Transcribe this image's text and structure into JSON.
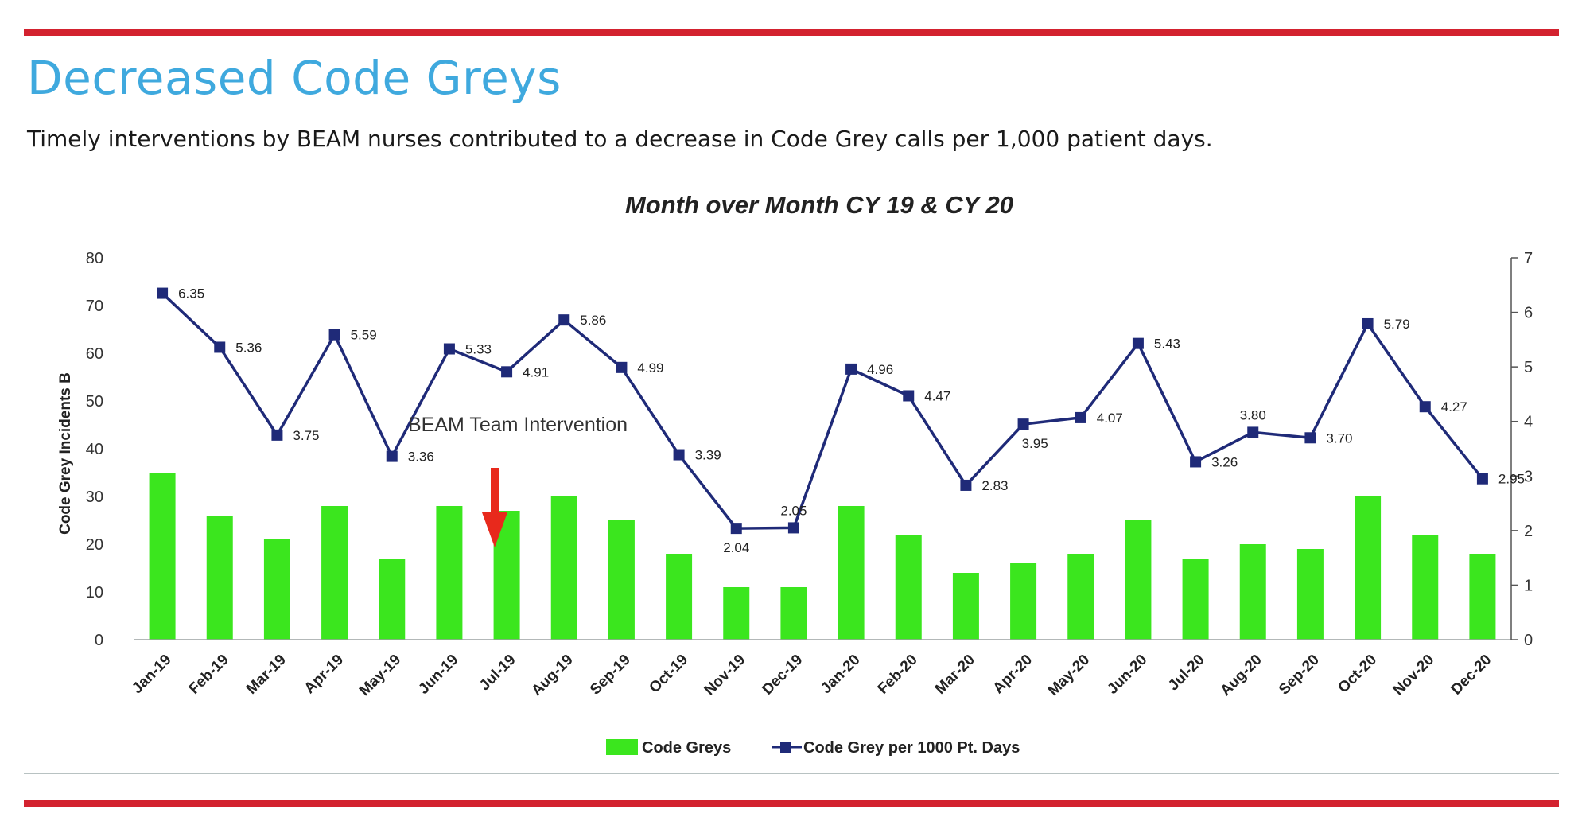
{
  "header": {
    "title": "Decreased Code Greys",
    "subtitle": "Timely interventions by BEAM nurses contributed to a decrease in Code Grey calls per 1,000 patient days."
  },
  "colors": {
    "accent_red": "#d3222f",
    "title_blue": "#3fa9de",
    "bar_green": "#3be61e",
    "line_navy": "#1f2a78",
    "arrow_red": "#e8291c"
  },
  "chart_data": {
    "type": "bar",
    "title": "Month over Month CY 19 & CY 20",
    "categories": [
      "Jan-19",
      "Feb-19",
      "Mar-19",
      "Apr-19",
      "May-19",
      "Jun-19",
      "Jul-19",
      "Aug-19",
      "Sep-19",
      "Oct-19",
      "Nov-19",
      "Dec-19",
      "Jan-20",
      "Feb-20",
      "Mar-20",
      "Apr-20",
      "May-20",
      "Jun-20",
      "Jul-20",
      "Aug-20",
      "Sep-20",
      "Oct-20",
      "Nov-20",
      "Dec-20"
    ],
    "ylabel": "Code Grey Incidents B",
    "ylim": [
      0,
      80
    ],
    "yticks": [
      "0",
      "10",
      "20",
      "30",
      "40",
      "50",
      "60",
      "70",
      "80"
    ],
    "y2lim": [
      0,
      7
    ],
    "y2ticks": [
      "0",
      "1",
      "2",
      "3",
      "4",
      "5",
      "6",
      "7"
    ],
    "grid": false,
    "legend_position": "bottom",
    "series": [
      {
        "name": "Code Greys",
        "type": "bar",
        "axis": "left",
        "values": [
          35,
          26,
          21,
          28,
          17,
          28,
          27,
          30,
          25,
          18,
          11,
          11,
          28,
          22,
          14,
          16,
          18,
          25,
          17,
          20,
          19,
          30,
          22,
          18
        ]
      },
      {
        "name": "Code Grey per 1000 Pt. Days",
        "type": "line",
        "axis": "right",
        "values": [
          6.35,
          5.36,
          3.75,
          5.59,
          3.36,
          5.33,
          4.91,
          5.86,
          4.99,
          3.39,
          2.04,
          2.05,
          4.96,
          4.47,
          2.83,
          3.95,
          4.07,
          5.43,
          3.26,
          3.8,
          3.7,
          5.79,
          4.27,
          2.95
        ],
        "labels": [
          "6.35",
          "5.36",
          "3.75",
          "5.59",
          "3.36",
          "5.33",
          "4.91",
          "5.86",
          "4.99",
          "3.39",
          "2.04",
          "2.05",
          "4.96",
          "4.47",
          "2.83",
          "3.95",
          "4.07",
          "5.43",
          "3.26",
          "3.80",
          "3.70",
          "5.79",
          "4.27",
          "2.95"
        ]
      }
    ],
    "annotations": [
      {
        "text": "BEAM Team Intervention",
        "at_category": "Jul-19"
      }
    ]
  }
}
